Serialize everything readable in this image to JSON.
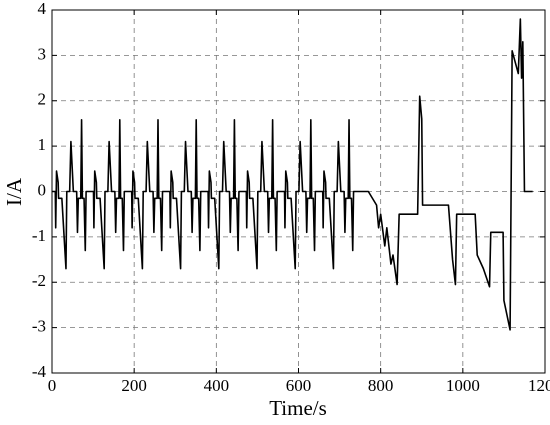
{
  "chart_data": {
    "type": "line",
    "x_label": "Time/s",
    "y_label": "I/A",
    "color": "#000000",
    "xlim": [
      0,
      1200
    ],
    "xticks": [
      0,
      200,
      400,
      600,
      800,
      1000,
      1200
    ],
    "ylim": [
      -4,
      4
    ],
    "yticks": [
      -4,
      -3,
      -2,
      -1,
      0,
      1,
      2,
      3,
      4
    ],
    "grid": true,
    "x": [
      0,
      8,
      9,
      11,
      15,
      16,
      24,
      34,
      36,
      43,
      46,
      52,
      60,
      62,
      64,
      70,
      72,
      74,
      78,
      81,
      83,
      93,
      101,
      102,
      104,
      108,
      109,
      117,
      127,
      129,
      136,
      139,
      145,
      153,
      155,
      157,
      163,
      165,
      167,
      171,
      174,
      176,
      186,
      194,
      195,
      197,
      201,
      202,
      210,
      220,
      222,
      229,
      232,
      238,
      246,
      248,
      250,
      256,
      258,
      260,
      264,
      267,
      269,
      279,
      287,
      288,
      290,
      294,
      295,
      303,
      313,
      315,
      322,
      325,
      331,
      339,
      341,
      343,
      349,
      351,
      353,
      357,
      360,
      362,
      372,
      380,
      381,
      383,
      387,
      388,
      396,
      406,
      408,
      415,
      418,
      424,
      432,
      434,
      436,
      442,
      444,
      446,
      450,
      453,
      455,
      465,
      473,
      474,
      476,
      480,
      481,
      489,
      499,
      501,
      508,
      511,
      517,
      525,
      527,
      529,
      535,
      537,
      539,
      543,
      546,
      548,
      558,
      566,
      567,
      569,
      573,
      574,
      582,
      592,
      594,
      601,
      604,
      610,
      618,
      620,
      622,
      628,
      630,
      632,
      636,
      639,
      641,
      651,
      659,
      660,
      662,
      666,
      667,
      675,
      685,
      687,
      694,
      697,
      703,
      711,
      713,
      715,
      721,
      723,
      725,
      729,
      732,
      734,
      744,
      770,
      790,
      795,
      800,
      810,
      815,
      825,
      830,
      840,
      845,
      890,
      895,
      900,
      902,
      965,
      975,
      982,
      985,
      1030,
      1035,
      1050,
      1065,
      1068,
      1098,
      1100,
      1115,
      1120,
      1135,
      1140,
      1143,
      1146,
      1150,
      1170
    ],
    "values": [
      0,
      0,
      -0.8,
      0.45,
      0.2,
      -0.15,
      -0.15,
      -1.7,
      0,
      0,
      1.1,
      0,
      0,
      -0.9,
      -0.15,
      -0.15,
      1.58,
      -0.15,
      -0.15,
      -1.3,
      0,
      0,
      0,
      -0.8,
      0.45,
      0.2,
      -0.15,
      -0.15,
      -1.7,
      0,
      0,
      1.1,
      0,
      0,
      -0.9,
      -0.15,
      -0.15,
      1.58,
      -0.15,
      -0.15,
      -1.3,
      0,
      0,
      0,
      -0.8,
      0.45,
      0.2,
      -0.15,
      -0.15,
      -1.7,
      0,
      0,
      1.1,
      0,
      0,
      -0.9,
      -0.15,
      -0.15,
      1.58,
      -0.15,
      -0.15,
      -1.3,
      0,
      0,
      0,
      -0.8,
      0.45,
      0.2,
      -0.15,
      -0.15,
      -1.7,
      0,
      0,
      1.1,
      0,
      0,
      -0.9,
      -0.15,
      -0.15,
      1.58,
      -0.15,
      -0.15,
      -1.3,
      0,
      0,
      0,
      -0.8,
      0.45,
      0.2,
      -0.15,
      -0.15,
      -1.7,
      0,
      0,
      1.1,
      0,
      0,
      -0.9,
      -0.15,
      -0.15,
      1.58,
      -0.15,
      -0.15,
      -1.3,
      0,
      0,
      0,
      -0.8,
      0.45,
      0.2,
      -0.15,
      -0.15,
      -1.7,
      0,
      0,
      1.1,
      0,
      0,
      -0.9,
      -0.15,
      -0.15,
      1.58,
      -0.15,
      -0.15,
      -1.3,
      0,
      0,
      0,
      -0.8,
      0.45,
      0.2,
      -0.15,
      -0.15,
      -1.7,
      0,
      0,
      1.1,
      0,
      0,
      -0.9,
      -0.15,
      -0.15,
      1.58,
      -0.15,
      -0.15,
      -1.3,
      0,
      0,
      0,
      -0.8,
      0.45,
      0.2,
      -0.15,
      -0.15,
      -1.7,
      0,
      0,
      1.1,
      0,
      0,
      -0.9,
      -0.15,
      -0.15,
      1.58,
      -0.15,
      -0.15,
      -1.3,
      0,
      0,
      0,
      -0.3,
      -0.8,
      -0.5,
      -1.2,
      -0.8,
      -1.6,
      -1.4,
      -2.05,
      -0.5,
      -0.5,
      2.1,
      1.6,
      -0.3,
      -0.3,
      -1.5,
      -2.05,
      -0.5,
      -0.5,
      -1.4,
      -1.7,
      -2.1,
      -0.9,
      -0.9,
      -2.4,
      -3.05,
      3.1,
      2.6,
      3.8,
      2.5,
      3.3,
      0,
      0
    ]
  }
}
